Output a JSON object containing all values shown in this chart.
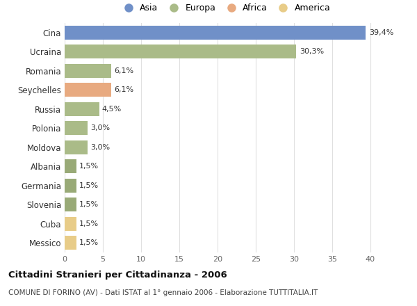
{
  "countries": [
    "Cina",
    "Ucraina",
    "Romania",
    "Seychelles",
    "Russia",
    "Polonia",
    "Moldova",
    "Albania",
    "Germania",
    "Slovenia",
    "Cuba",
    "Messico"
  ],
  "values": [
    39.4,
    30.3,
    6.1,
    6.1,
    4.5,
    3.0,
    3.0,
    1.5,
    1.5,
    1.5,
    1.5,
    1.5
  ],
  "labels": [
    "39,4%",
    "30,3%",
    "6,1%",
    "6,1%",
    "4,5%",
    "3,0%",
    "3,0%",
    "1,5%",
    "1,5%",
    "1,5%",
    "1,5%",
    "1,5%"
  ],
  "colors": [
    "#7090c8",
    "#aabb88",
    "#aabb88",
    "#e8aa80",
    "#aabb88",
    "#aabb88",
    "#aabb88",
    "#99aa77",
    "#99aa77",
    "#99aa77",
    "#e8cc88",
    "#e8cc88"
  ],
  "legend_labels": [
    "Asia",
    "Europa",
    "Africa",
    "America"
  ],
  "legend_colors": [
    "#7090c8",
    "#aabb88",
    "#e8aa80",
    "#e8cc88"
  ],
  "title": "Cittadini Stranieri per Cittadinanza - 2006",
  "subtitle": "COMUNE DI FORINO (AV) - Dati ISTAT al 1° gennaio 2006 - Elaborazione TUTTITALIA.IT",
  "xlim": [
    0,
    42
  ],
  "xticks": [
    0,
    5,
    10,
    15,
    20,
    25,
    30,
    35,
    40
  ],
  "bg_color": "#ffffff",
  "grid_color": "#e0e0e0",
  "bar_height": 0.72
}
